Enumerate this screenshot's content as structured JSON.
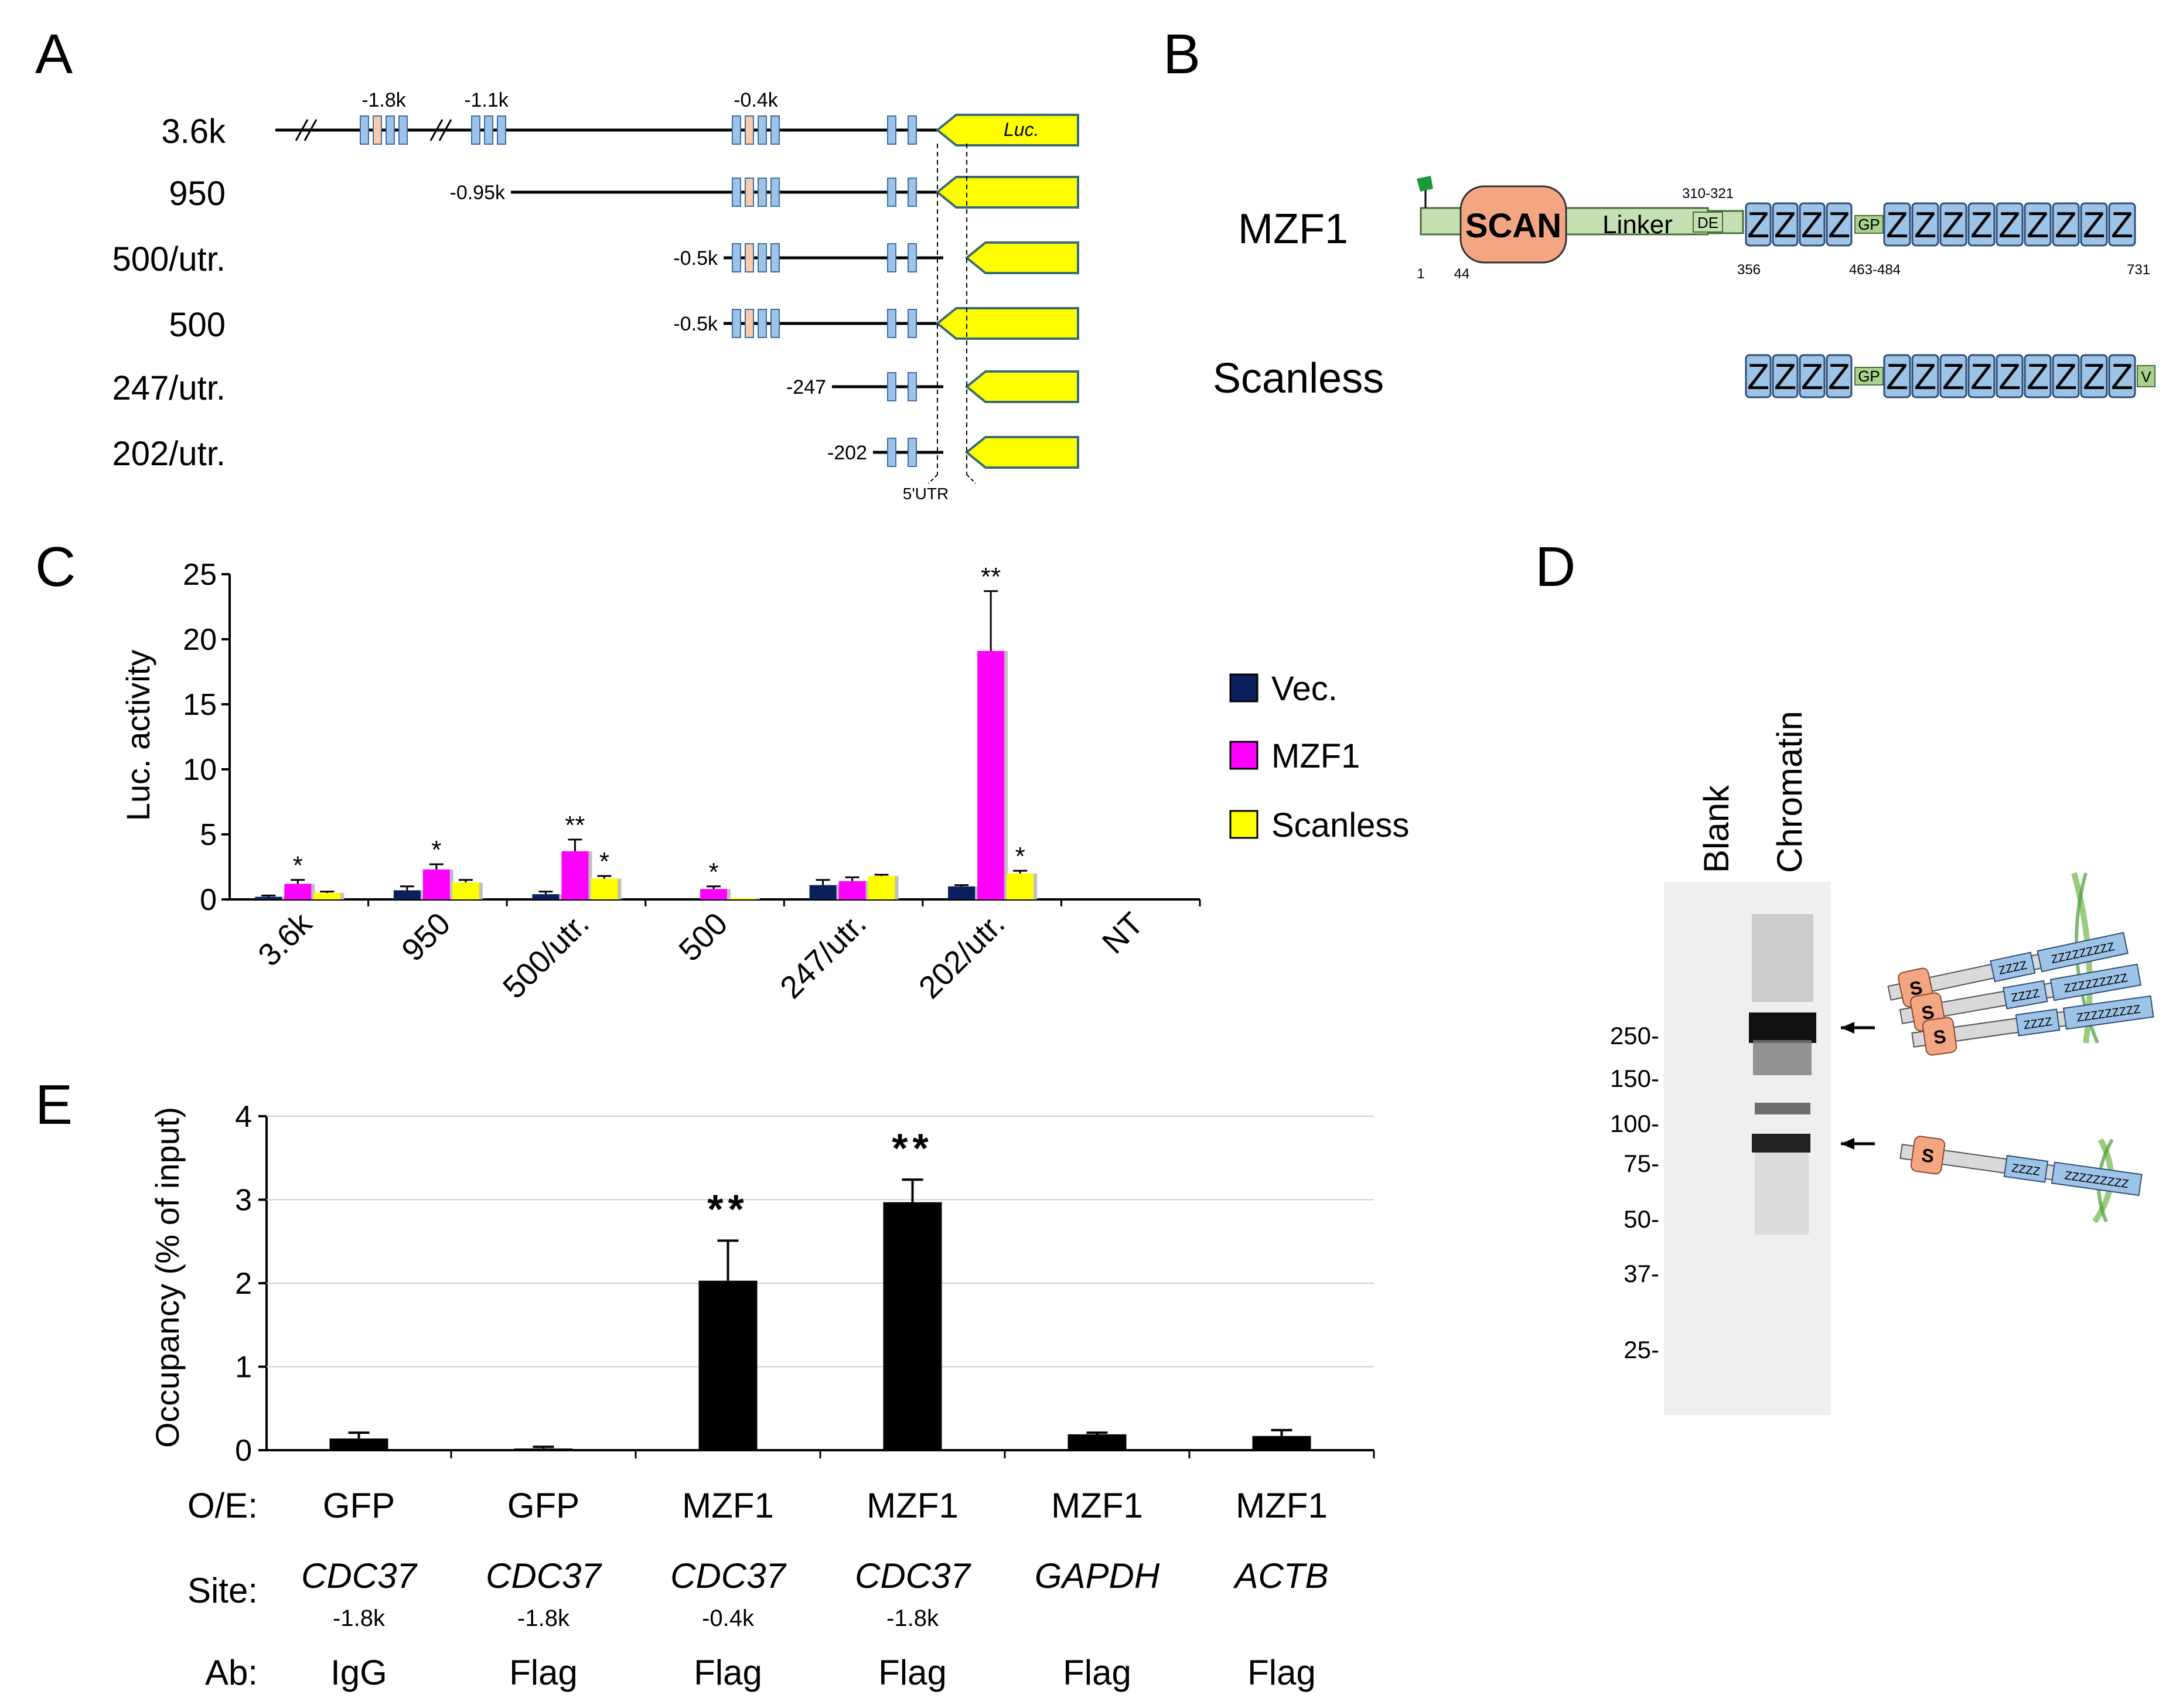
{
  "panels": {
    "A": {
      "letter": "A",
      "constructs": [
        "3.6k",
        "950",
        "500/utr.",
        "500",
        "247/utr.",
        "202/utr."
      ],
      "start_labels": [
        "-0.95k",
        "-0.5k",
        "-0.5k",
        "-247",
        "-202"
      ],
      "top_labels": [
        "-1.8k",
        "-1.1k",
        "-0.4k"
      ],
      "luc_label": "Luc.",
      "utr_label": "5'UTR"
    },
    "B": {
      "letter": "B",
      "proteins": [
        "MZF1",
        "Scanless"
      ],
      "scan_label": "SCAN",
      "linker_label": "Linker",
      "de_label": "DE",
      "gp_label": "GP",
      "v_label": "V",
      "z_label": "Z",
      "positions": [
        "1",
        "44",
        "310-321",
        "356",
        "463-484",
        "731"
      ]
    },
    "C": {
      "letter": "C"
    },
    "D": {
      "letter": "D",
      "lanes": [
        "Blank",
        "Chromatin"
      ],
      "markers": [
        "250-",
        "150-",
        "100-",
        "75-",
        "50-",
        "37-",
        "25-"
      ],
      "s_label": "S",
      "zzzz_label": "ZZZZ",
      "z9_label": "ZZZZZZZZZ"
    },
    "E": {
      "letter": "E",
      "row_headers": [
        "O/E:",
        "Site:",
        "Ab:"
      ],
      "oe": [
        "GFP",
        "GFP",
        "MZF1",
        "MZF1",
        "MZF1",
        "MZF1"
      ],
      "site": [
        "CDC37",
        "CDC37",
        "CDC37",
        "CDC37",
        "GAPDH",
        "ACTB"
      ],
      "site_pos": [
        "-1.8k",
        "-1.8k",
        "-0.4k",
        "-1.8k",
        "",
        ""
      ],
      "ab": [
        "IgG",
        "Flag",
        "Flag",
        "Flag",
        "Flag",
        "Flag"
      ]
    }
  },
  "chart_data": [
    {
      "type": "bar",
      "title": "",
      "xlabel": "",
      "ylabel": "Luc. activity",
      "ylim": [
        0,
        25
      ],
      "yticks": [
        0,
        5,
        10,
        15,
        20,
        25
      ],
      "categories": [
        "3.6k",
        "950",
        "500/utr.",
        "500",
        "247/utr.",
        "202/utr.",
        "NT"
      ],
      "legend_position": "right",
      "series": [
        {
          "name": "Vec.",
          "color": "#0b1f5c",
          "values": [
            0.2,
            0.7,
            0.4,
            0,
            1.1,
            1.0,
            0
          ],
          "errors": [
            0.1,
            0.3,
            0.2,
            0,
            0.4,
            0.1,
            0
          ],
          "sig": [
            "",
            "",
            "",
            "",
            "",
            "",
            ""
          ]
        },
        {
          "name": "MZF1",
          "color": "#ff00ff",
          "values": [
            1.2,
            2.3,
            3.7,
            0.8,
            1.4,
            19.1,
            0
          ],
          "errors": [
            0.3,
            0.4,
            0.9,
            0.2,
            0.3,
            4.6,
            0
          ],
          "sig": [
            "*",
            "*",
            "**",
            "*",
            "",
            "**",
            ""
          ]
        },
        {
          "name": "Scanless",
          "color": "#ffff00",
          "values": [
            0.5,
            1.3,
            1.6,
            0.1,
            1.8,
            2.0,
            0
          ],
          "errors": [
            0.1,
            0.2,
            0.2,
            0,
            0.1,
            0.2,
            0
          ],
          "sig": [
            "",
            "",
            "*",
            "",
            "",
            "*",
            ""
          ]
        }
      ]
    },
    {
      "type": "bar",
      "title": "",
      "xlabel": "",
      "ylabel": "Occupancy (% of input)",
      "ylim": [
        0,
        4
      ],
      "yticks": [
        0,
        1,
        2,
        3,
        4
      ],
      "grid": true,
      "series": [
        {
          "name": "Occupancy",
          "color": "#000000",
          "values": [
            0.14,
            0.02,
            2.03,
            2.97,
            0.19,
            0.17
          ],
          "errors": [
            0.07,
            0.02,
            0.48,
            0.27,
            0.02,
            0.07
          ],
          "sig": [
            "",
            "",
            "**",
            "**",
            "",
            ""
          ]
        }
      ]
    }
  ]
}
